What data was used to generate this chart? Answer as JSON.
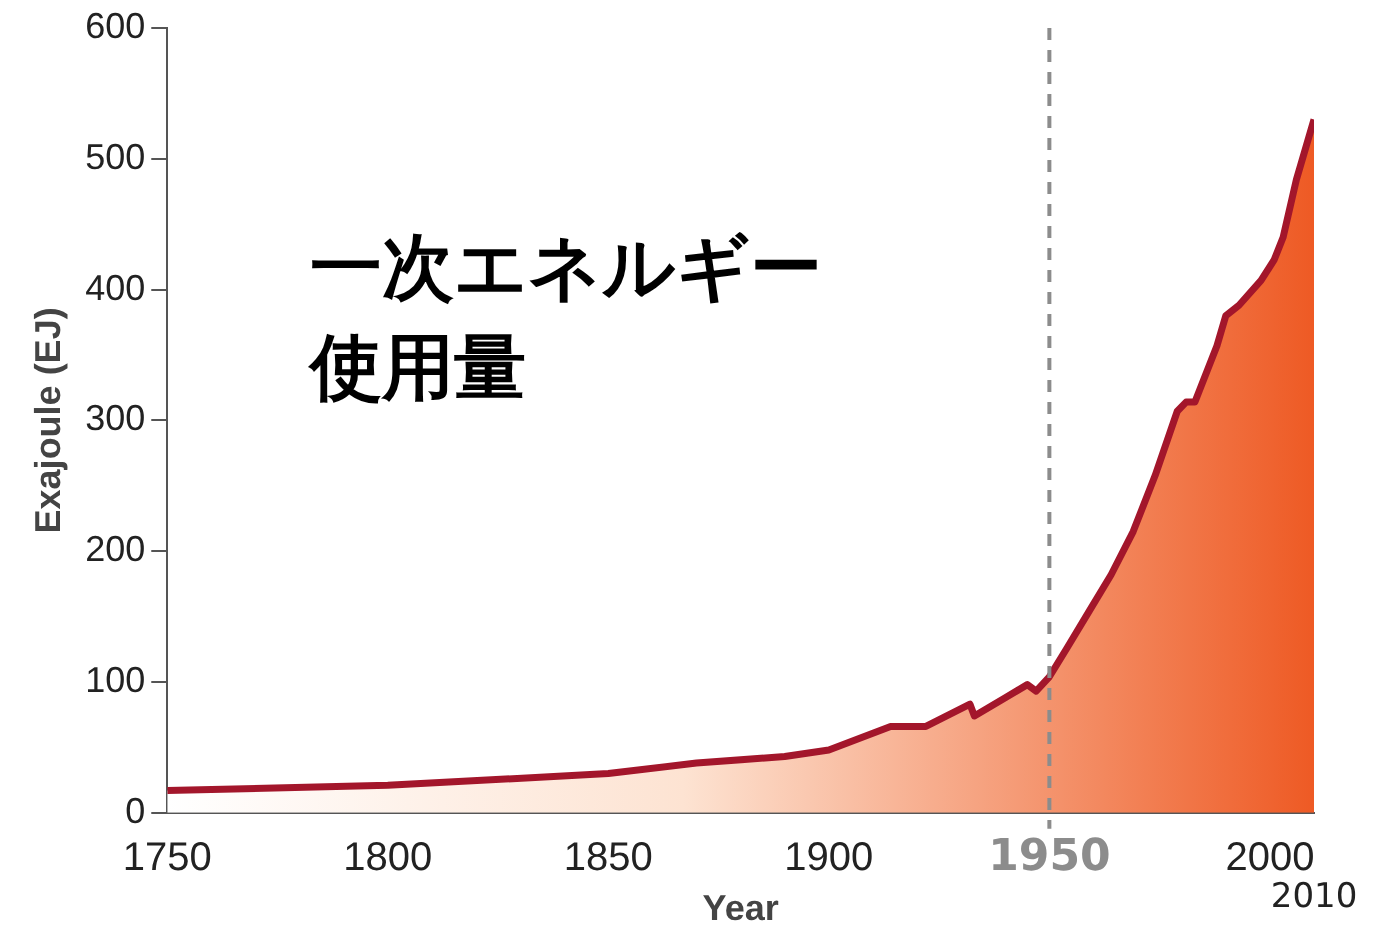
{
  "chart_data": {
    "type": "area",
    "xlabel": "Year",
    "ylabel": "Exajoule (EJ)",
    "annotations": [
      "一次エネルギー",
      "使用量",
      "2010"
    ],
    "x": [
      1750,
      1800,
      1850,
      1870,
      1890,
      1900,
      1914,
      1922,
      1932,
      1933,
      1940,
      1945,
      1947,
      1950,
      1954,
      1959,
      1964,
      1969,
      1974,
      1979,
      1981,
      1983,
      1988,
      1990,
      1993,
      1998,
      2001,
      2003,
      2006,
      2010
    ],
    "series": [
      {
        "color": "#a3162b",
        "values": [
          17,
          21,
          30,
          38,
          43,
          48,
          66,
          66,
          83,
          74,
          88,
          98,
          93,
          104,
          126,
          154,
          182,
          215,
          258,
          307,
          314,
          314,
          357,
          380,
          388,
          407,
          423,
          440,
          484,
          530
        ]
      }
    ],
    "xlim": [
      1750,
      2010
    ],
    "xticks": [
      1750,
      1800,
      1850,
      1900,
      2000
    ],
    "ylim": [
      0,
      600
    ],
    "yticks": [
      0,
      100,
      200,
      300,
      400,
      500,
      600
    ],
    "ref_lines": [
      {
        "axis": "x",
        "value": 1950,
        "label": "1950",
        "color": "#8c8c8c",
        "line_style": "dashed"
      }
    ],
    "grid": false,
    "legend": false,
    "marker": "none",
    "line_style": "solid"
  }
}
